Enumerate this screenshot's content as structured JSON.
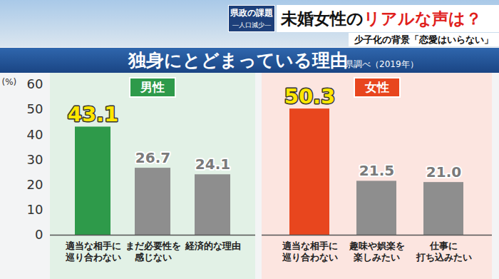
{
  "header": {
    "logo": [
      "県政の課題",
      "―人口減少―"
    ],
    "headline": [
      "未婚女性の",
      "リアルな声は？"
    ],
    "subheadline": "少子化の背景「恋愛はいらない」"
  },
  "chart_data": {
    "type": "bar",
    "title": "独身にとどまっている理由",
    "subtitle": "県調べ（2019年）",
    "ylabel": "(%)",
    "ylim": [
      0,
      60
    ],
    "yticks": [
      0,
      10,
      20,
      30,
      40,
      50,
      60
    ],
    "data_labels": true,
    "series": [
      {
        "name": "男性",
        "categories": [
          "適当な相手に\n巡り合わない",
          "まだ必要性を\n感じない",
          "経済的な理由"
        ],
        "values": [
          43.1,
          26.7,
          24.1
        ],
        "value_labels": [
          "43.1",
          "26.7",
          "24.1"
        ],
        "colors": [
          "#2e9a4a",
          "#8e8e8e",
          "#8e8e8e"
        ]
      },
      {
        "name": "女性",
        "categories": [
          "適当な相手に\n巡り合わない",
          "趣味や娯楽を\n楽しみたい",
          "仕事に\n打ち込みたい"
        ],
        "values": [
          50.3,
          21.5,
          21.0
        ],
        "value_labels": [
          "50.3",
          "21.5",
          "21.0"
        ],
        "colors": [
          "#e8461e",
          "#8e8e8e",
          "#8e8e8e"
        ]
      }
    ]
  }
}
